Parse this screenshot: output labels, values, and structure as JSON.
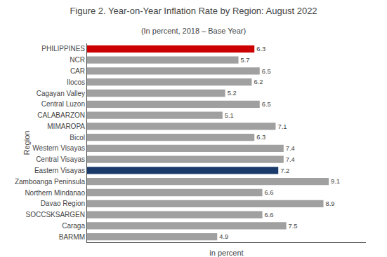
{
  "chart_data": {
    "type": "bar",
    "orientation": "horizontal",
    "title": "Figure 2. Year-on-Year Inflation Rate by Region: August 2022",
    "subtitle": "(In percent, 2018 – Base Year)",
    "x_label": "in percent",
    "y_label": "Region",
    "categories": [
      "PHILIPPINES",
      "NCR",
      "CAR",
      "Ilocos",
      "Cagayan Valley",
      "Central Luzon",
      "CALABARZON",
      "MIMAROPA",
      "Bicol",
      "Western Visayas",
      "Central Visayas",
      "Eastern Visayas",
      "Zamboanga Peninsula",
      "Northern Mindanao",
      "Davao Region",
      "SOCCSKSARGEN",
      "Caraga",
      "BARMM"
    ],
    "values": [
      6.3,
      5.7,
      6.5,
      6.2,
      5.2,
      6.5,
      5.1,
      7.1,
      6.3,
      7.4,
      7.4,
      7.2,
      9.1,
      6.6,
      8.9,
      6.6,
      7.5,
      4.9
    ],
    "colors": [
      "#cc0000",
      "#a0a0a0",
      "#a0a0a0",
      "#a0a0a0",
      "#a0a0a0",
      "#a0a0a0",
      "#a0a0a0",
      "#a0a0a0",
      "#a0a0a0",
      "#a0a0a0",
      "#a0a0a0",
      "#1a3a6b",
      "#a0a0a0",
      "#a0a0a0",
      "#a0a0a0",
      "#a0a0a0",
      "#a0a0a0",
      "#a0a0a0"
    ],
    "xlim": [
      0,
      10.5
    ],
    "tick_labels": "y",
    "data_labels": true,
    "grid": false
  }
}
